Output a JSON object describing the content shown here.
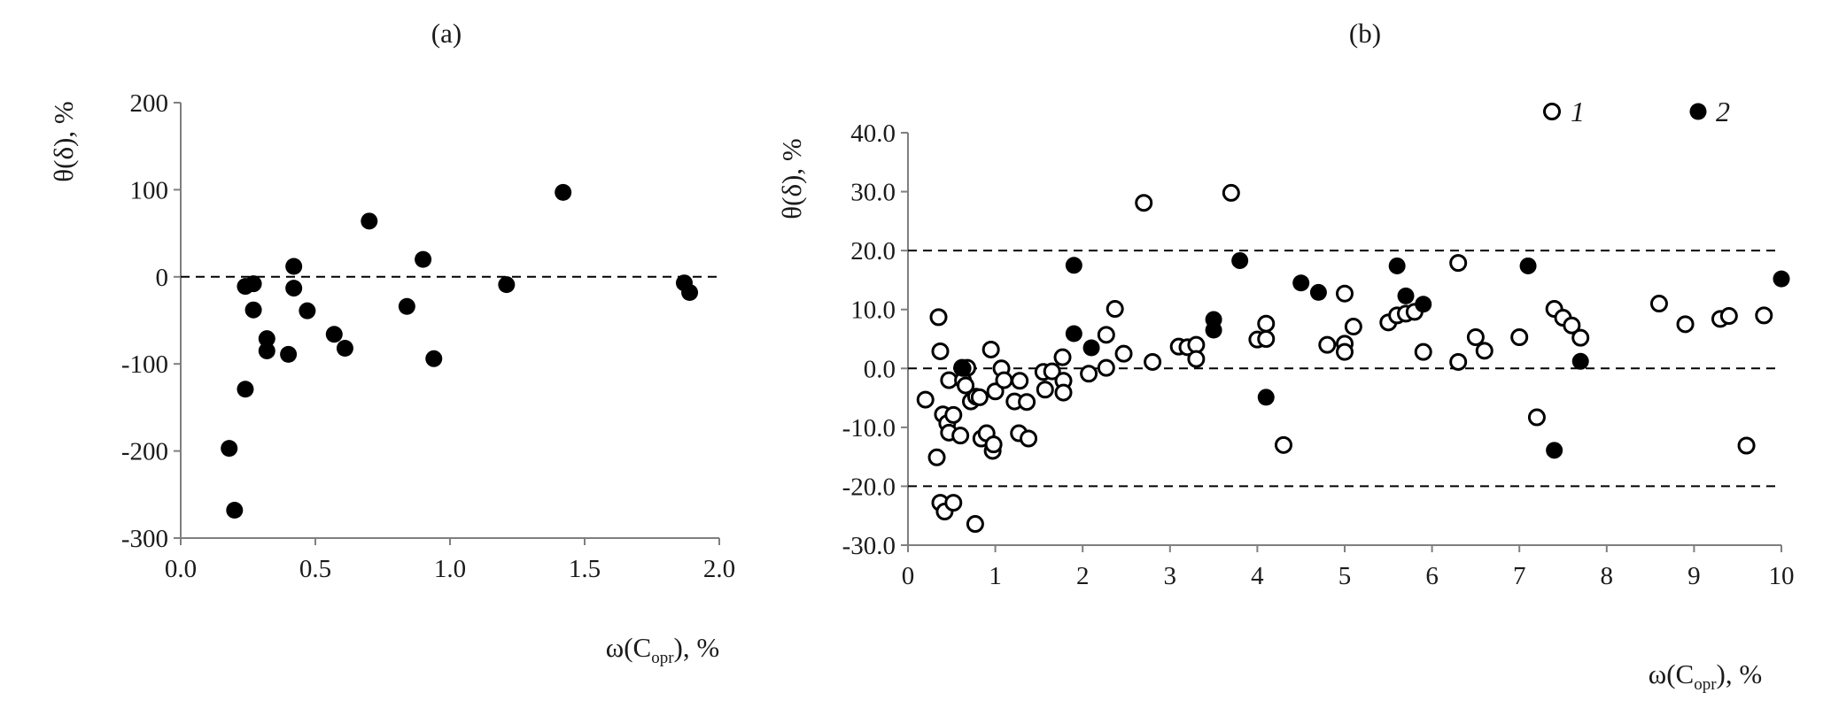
{
  "chart_data": [
    {
      "type": "scatter",
      "title": "(a)",
      "ylabel": "θ(δ), %",
      "xlabel": "ω(C",
      "xlabel_sub": "opr",
      "xlabel_tail": "), %",
      "xlim": [
        0.0,
        2.0
      ],
      "ylim": [
        -300,
        200
      ],
      "xticks": [
        0.0,
        0.5,
        1.0,
        1.5,
        2.0
      ],
      "xtick_labels": [
        "0.0",
        "0.5",
        "1.0",
        "1.5",
        "2.0"
      ],
      "yticks": [
        -300,
        -200,
        -100,
        0,
        100,
        200
      ],
      "ytick_labels": [
        "-300",
        "-200",
        "-100",
        "0",
        "100",
        "200"
      ],
      "reference_lines": [
        0
      ],
      "grid": false,
      "series": [
        {
          "marker": "filled",
          "points": [
            [
              0.18,
              -197
            ],
            [
              0.2,
              -268
            ],
            [
              0.24,
              -129
            ],
            [
              0.24,
              -11
            ],
            [
              0.27,
              -8
            ],
            [
              0.27,
              -38
            ],
            [
              0.32,
              -71
            ],
            [
              0.32,
              -85
            ],
            [
              0.4,
              -89
            ],
            [
              0.42,
              12
            ],
            [
              0.42,
              -13
            ],
            [
              0.47,
              -39
            ],
            [
              0.57,
              -66
            ],
            [
              0.61,
              -82
            ],
            [
              0.7,
              64
            ],
            [
              0.84,
              -34
            ],
            [
              0.9,
              20
            ],
            [
              0.94,
              -94
            ],
            [
              1.21,
              -9
            ],
            [
              1.42,
              97
            ],
            [
              1.87,
              -7
            ],
            [
              1.89,
              -18
            ]
          ]
        }
      ]
    },
    {
      "type": "scatter",
      "title": "(b)",
      "ylabel": "θ(δ), %",
      "xlabel": "ω(C",
      "xlabel_sub": "opr",
      "xlabel_tail": "), %",
      "xlim": [
        0,
        10
      ],
      "ylim": [
        -30,
        40
      ],
      "xticks": [
        0,
        1,
        2,
        3,
        4,
        5,
        6,
        7,
        8,
        9,
        10
      ],
      "xtick_labels": [
        "0",
        "1",
        "2",
        "3",
        "4",
        "5",
        "6",
        "7",
        "8",
        "9",
        "10"
      ],
      "yticks": [
        -30,
        -20,
        -10,
        0,
        10,
        20,
        30,
        40
      ],
      "ytick_labels": [
        "-30.0",
        "-20.0",
        "-10.0",
        "0.0",
        "10.0",
        "20.0",
        "30.0",
        "40.0"
      ],
      "reference_lines": [
        20,
        0,
        -20
      ],
      "grid": false,
      "legend_position": "top-right",
      "series": [
        {
          "name": "1",
          "marker": "open",
          "points": [
            [
              0.2,
              -5.3
            ],
            [
              0.33,
              -15.1
            ],
            [
              0.35,
              8.7
            ],
            [
              0.37,
              2.9
            ],
            [
              0.37,
              -22.8
            ],
            [
              0.4,
              -7.8
            ],
            [
              0.42,
              -24.3
            ],
            [
              0.45,
              -9.3
            ],
            [
              0.47,
              -10.9
            ],
            [
              0.47,
              -2.0
            ],
            [
              0.52,
              -7.9
            ],
            [
              0.52,
              -22.8
            ],
            [
              0.6,
              -11.4
            ],
            [
              0.62,
              0.1
            ],
            [
              0.63,
              -2.0
            ],
            [
              0.66,
              -2.9
            ],
            [
              0.68,
              0.1
            ],
            [
              0.72,
              -5.6
            ],
            [
              0.77,
              -26.4
            ],
            [
              0.78,
              -4.8
            ],
            [
              0.82,
              -4.9
            ],
            [
              0.84,
              -11.9
            ],
            [
              0.9,
              -11.0
            ],
            [
              0.95,
              3.2
            ],
            [
              0.97,
              -14.0
            ],
            [
              0.98,
              -12.9
            ],
            [
              1.0,
              -3.9
            ],
            [
              1.07,
              0.0
            ],
            [
              1.1,
              -2.0
            ],
            [
              1.22,
              -5.6
            ],
            [
              1.27,
              -11.0
            ],
            [
              1.28,
              -2.1
            ],
            [
              1.36,
              -5.7
            ],
            [
              1.38,
              -11.9
            ],
            [
              1.55,
              -0.6
            ],
            [
              1.57,
              -3.6
            ],
            [
              1.65,
              -0.5
            ],
            [
              1.77,
              1.9
            ],
            [
              1.78,
              -2.1
            ],
            [
              1.78,
              -4.1
            ],
            [
              2.07,
              -0.9
            ],
            [
              2.27,
              0.1
            ],
            [
              2.27,
              5.7
            ],
            [
              2.37,
              10.1
            ],
            [
              2.47,
              2.5
            ],
            [
              2.7,
              28.1
            ],
            [
              2.8,
              1.1
            ],
            [
              3.1,
              3.7
            ],
            [
              3.2,
              3.6
            ],
            [
              3.3,
              4.0
            ],
            [
              3.3,
              1.6
            ],
            [
              3.7,
              29.8
            ],
            [
              4.0,
              4.9
            ],
            [
              4.1,
              5.0
            ],
            [
              4.1,
              7.6
            ],
            [
              4.3,
              -13.0
            ],
            [
              4.8,
              4.0
            ],
            [
              5.0,
              12.7
            ],
            [
              5.0,
              4.2
            ],
            [
              5.0,
              2.8
            ],
            [
              5.1,
              7.1
            ],
            [
              5.5,
              7.8
            ],
            [
              5.6,
              9.0
            ],
            [
              5.7,
              9.3
            ],
            [
              5.8,
              9.6
            ],
            [
              5.9,
              2.8
            ],
            [
              6.3,
              17.9
            ],
            [
              6.3,
              1.1
            ],
            [
              6.5,
              5.3
            ],
            [
              6.6,
              3.0
            ],
            [
              7.0,
              5.3
            ],
            [
              7.2,
              -8.3
            ],
            [
              7.4,
              10.1
            ],
            [
              7.5,
              8.6
            ],
            [
              7.6,
              7.3
            ],
            [
              7.7,
              5.2
            ],
            [
              8.6,
              11.0
            ],
            [
              8.9,
              7.5
            ],
            [
              9.3,
              8.4
            ],
            [
              9.4,
              8.9
            ],
            [
              9.6,
              -13.1
            ],
            [
              9.8,
              9.0
            ]
          ]
        },
        {
          "name": "2",
          "marker": "filled",
          "points": [
            [
              0.63,
              0.0
            ],
            [
              1.9,
              17.5
            ],
            [
              1.9,
              5.9
            ],
            [
              2.1,
              3.5
            ],
            [
              3.5,
              8.3
            ],
            [
              3.5,
              6.5
            ],
            [
              3.8,
              18.3
            ],
            [
              4.1,
              -4.9
            ],
            [
              4.5,
              14.5
            ],
            [
              4.7,
              12.9
            ],
            [
              5.6,
              17.4
            ],
            [
              5.7,
              12.3
            ],
            [
              5.9,
              10.9
            ],
            [
              7.1,
              17.4
            ],
            [
              7.4,
              -13.9
            ],
            [
              7.7,
              1.2
            ],
            [
              10.0,
              15.2
            ]
          ]
        }
      ]
    }
  ]
}
